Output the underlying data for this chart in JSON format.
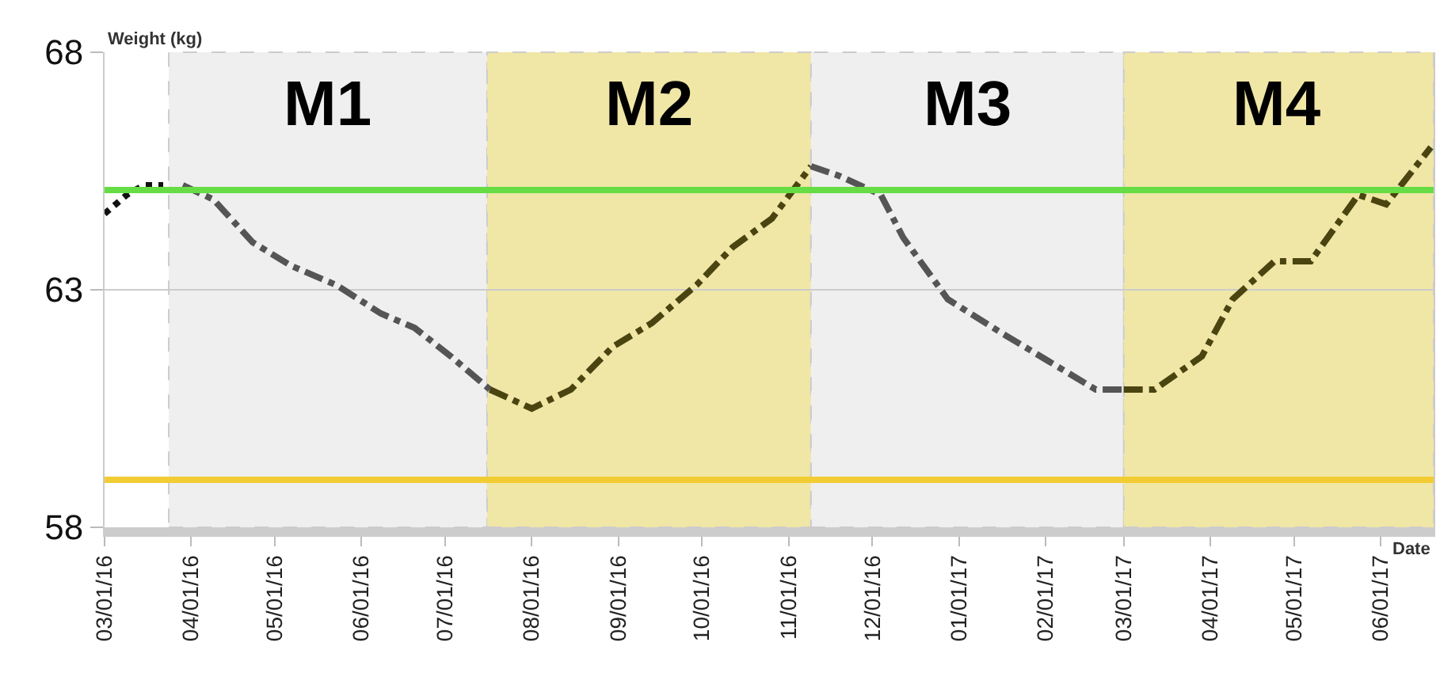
{
  "chart_data": {
    "type": "line",
    "xlabel": "Date",
    "ylabel": "Weight (kg)",
    "xlim": [
      "2016-03-01",
      "2017-06-20"
    ],
    "ylim": [
      58,
      68
    ],
    "yticks": [
      58,
      63,
      68
    ],
    "xticks": [
      {
        "value": "2016-03-01",
        "label": "03/01/16"
      },
      {
        "value": "2016-04-01",
        "label": "04/01/16"
      },
      {
        "value": "2016-05-01",
        "label": "05/01/16"
      },
      {
        "value": "2016-06-01",
        "label": "06/01/16"
      },
      {
        "value": "2016-07-01",
        "label": "07/01/16"
      },
      {
        "value": "2016-08-01",
        "label": "08/01/16"
      },
      {
        "value": "2016-09-01",
        "label": "09/01/16"
      },
      {
        "value": "2016-10-01",
        "label": "10/01/16"
      },
      {
        "value": "2016-11-01",
        "label": "11/01/16"
      },
      {
        "value": "2016-12-01",
        "label": "12/01/16"
      },
      {
        "value": "2017-01-01",
        "label": "01/01/17"
      },
      {
        "value": "2017-02-01",
        "label": "02/01/17"
      },
      {
        "value": "2017-03-01",
        "label": "03/01/17"
      },
      {
        "value": "2017-04-01",
        "label": "04/01/17"
      },
      {
        "value": "2017-05-01",
        "label": "05/01/17"
      },
      {
        "value": "2017-06-01",
        "label": "06/01/17"
      }
    ],
    "grid": "y",
    "marker": "none",
    "series": [
      {
        "color": "#111111",
        "line_style": "dotted",
        "x": [
          "2016-03-01",
          "2016-03-09",
          "2016-03-15",
          "2016-03-22"
        ],
        "values": [
          64.6,
          65.0,
          65.2,
          65.2
        ]
      },
      {
        "color": "#555555",
        "line_style": "dashed",
        "x": [
          "2016-03-29",
          "2016-04-09",
          "2016-04-23",
          "2016-05-07",
          "2016-05-23",
          "2016-06-08",
          "2016-06-20",
          "2016-07-03",
          "2016-07-17"
        ],
        "values": [
          65.2,
          64.9,
          64.0,
          63.5,
          63.1,
          62.5,
          62.2,
          61.6,
          60.9
        ]
      },
      {
        "color": "#4a4410",
        "line_style": "dashed",
        "x": [
          "2016-07-17",
          "2016-08-01",
          "2016-08-15",
          "2016-08-30",
          "2016-09-13",
          "2016-09-29",
          "2016-10-12",
          "2016-10-26",
          "2016-11-09"
        ],
        "values": [
          60.9,
          60.5,
          60.9,
          61.8,
          62.3,
          63.1,
          63.9,
          64.5,
          65.6
        ]
      },
      {
        "color": "#555555",
        "line_style": "dashed",
        "x": [
          "2016-11-09",
          "2016-11-19",
          "2016-12-04",
          "2016-12-12",
          "2016-12-28",
          "2017-01-16",
          "2017-02-02",
          "2017-02-19",
          "2017-03-01"
        ],
        "values": [
          65.6,
          65.4,
          65.0,
          64.1,
          62.8,
          62.1,
          61.5,
          60.9,
          60.9
        ]
      },
      {
        "color": "#4a4410",
        "line_style": "dashed",
        "x": [
          "2017-03-01",
          "2017-03-12",
          "2017-03-29",
          "2017-04-09",
          "2017-04-24",
          "2017-05-07",
          "2017-05-24",
          "2017-06-03",
          "2017-06-19"
        ],
        "values": [
          60.9,
          60.9,
          61.6,
          62.8,
          63.6,
          63.6,
          65.0,
          64.8,
          66.0
        ]
      }
    ],
    "ref_lines": [
      {
        "axis": "y",
        "value": 65.1,
        "color": "#66dd44"
      },
      {
        "axis": "y",
        "value": 59,
        "color": "#f2cc33"
      }
    ],
    "bands": [
      {
        "axis": "x",
        "from": "2016-03-24",
        "to": "2016-07-16",
        "label": "M1",
        "color": "#efefef"
      },
      {
        "axis": "x",
        "from": "2016-07-16",
        "to": "2016-11-09",
        "label": "M2",
        "color": "#f0e6a6"
      },
      {
        "axis": "x",
        "from": "2016-11-09",
        "to": "2017-03-01",
        "label": "M3",
        "color": "#efefef"
      },
      {
        "axis": "x",
        "from": "2017-03-01",
        "to": "2017-06-20",
        "label": "M4",
        "color": "#f0e6a6"
      }
    ]
  }
}
